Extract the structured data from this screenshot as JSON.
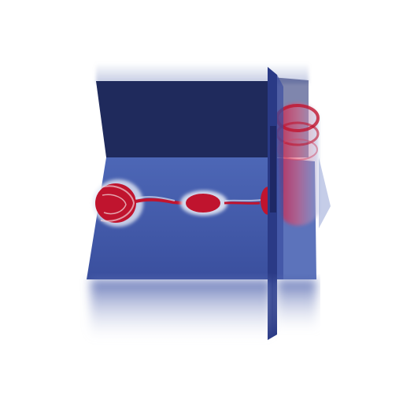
{
  "scene": {
    "kind": "3d-volume-slice-render",
    "colors": {
      "background": "#ffffff",
      "dark_plane": "#1f2a5c",
      "plane_blue": "#3f58a8",
      "plane_edge": "#2a3b80",
      "feature_red": "#c0142e",
      "feature_light": "#dfe4f2"
    },
    "elements": [
      "back-vertical-slice",
      "horizontal-slice",
      "front-vertical-slice",
      "volume-column",
      "lower-fade-region"
    ]
  }
}
